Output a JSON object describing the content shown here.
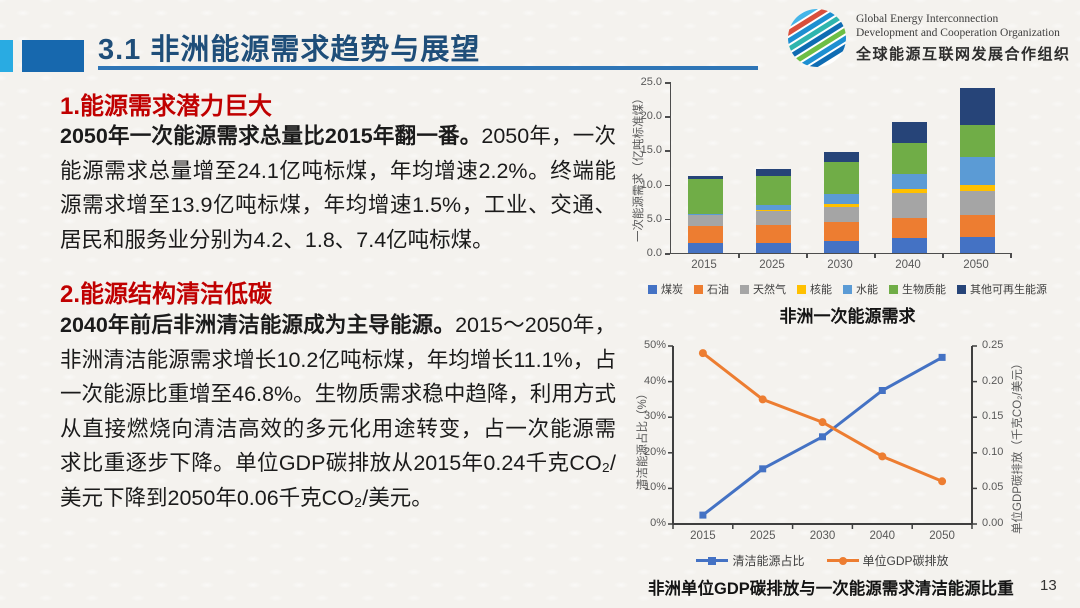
{
  "page_number": "13",
  "header": {
    "title": "3.1 非洲能源需求趋势与展望",
    "logo": {
      "en_line1": "Global Energy Interconnection",
      "en_line2": "Development and Cooperation Organization",
      "cn": "全球能源互联网发展合作组织"
    }
  },
  "sections": [
    {
      "heading": "1.能源需求潜力巨大",
      "lead": "2050年一次能源需求总量比2015年翻一番。",
      "body": "2050年，一次能源需求总量增至24.1亿吨标煤，年均增速2.2%。终端能源需求增至13.9亿吨标煤，年均增速1.5%，工业、交通、居民和服务业分别为4.2、1.8、7.4亿吨标煤。"
    },
    {
      "heading": "2.能源结构清洁低碳",
      "lead": "2040年前后非洲清洁能源成为主导能源。",
      "body": "2015～2050年，非洲清洁能源需求增长10.2亿吨标煤，年均增长11.1%，占一次能源比重增至46.8%。生物质需求稳中趋降，利用方式从直接燃烧向清洁高效的多元化用途转变，占一次能源需求比重逐步下降。单位GDP碳排放从2015年0.24千克CO₂/美元下降到2050年0.06千克CO₂/美元。"
    }
  ],
  "chart_data": [
    {
      "type": "bar",
      "stacked": true,
      "title": "非洲一次能源需求",
      "ylabel": "一次能源需求（亿吨标准煤）",
      "ylim": [
        0,
        25
      ],
      "yticks": [
        "25.0",
        "20.0",
        "15.0",
        "10.0",
        "5.0",
        "0.0"
      ],
      "grid": false,
      "legend_position": "bottom",
      "categories": [
        "2015",
        "2025",
        "2030",
        "2040",
        "2050"
      ],
      "series": [
        {
          "name": "煤炭",
          "color": "#4472C4",
          "values": [
            1.5,
            1.5,
            1.8,
            2.2,
            2.4
          ]
        },
        {
          "name": "石油",
          "color": "#ED7D31",
          "values": [
            2.5,
            2.6,
            2.7,
            2.9,
            3.1
          ]
        },
        {
          "name": "天然气",
          "color": "#A5A5A5",
          "values": [
            1.5,
            2.0,
            2.2,
            3.7,
            3.5
          ]
        },
        {
          "name": "核能",
          "color": "#FFC000",
          "values": [
            0.05,
            0.2,
            0.4,
            0.5,
            0.9
          ]
        },
        {
          "name": "水能",
          "color": "#5B9BD5",
          "values": [
            0.15,
            0.7,
            1.6,
            2.2,
            4.1
          ]
        },
        {
          "name": "生物质能",
          "color": "#70AD47",
          "values": [
            5.2,
            4.3,
            4.6,
            4.6,
            4.7
          ]
        },
        {
          "name": "其他可再生能源",
          "color": "#264478",
          "values": [
            0.3,
            1.0,
            1.5,
            3.1,
            5.4
          ]
        }
      ],
      "totals": [
        11.2,
        12.3,
        14.8,
        19.2,
        24.1
      ]
    },
    {
      "type": "line",
      "caption": "非洲单位GDP碳排放与一次能源需求清洁能源比重",
      "x": [
        "2015",
        "2025",
        "2030",
        "2040",
        "2050"
      ],
      "grid": false,
      "legend_position": "bottom",
      "left_axis": {
        "label": "清洁能源占比（%）",
        "range": [
          0,
          50
        ],
        "ticks": [
          "50%",
          "40%",
          "30%",
          "20%",
          "10%",
          "0%"
        ]
      },
      "right_axis": {
        "label": "单位GDP碳排放（千克CO₂/美元）",
        "range": [
          0,
          0.25
        ],
        "ticks": [
          "0.25",
          "0.20",
          "0.15",
          "0.10",
          "0.05",
          "0.00"
        ]
      },
      "series": [
        {
          "name": "清洁能源占比",
          "color": "#4472C4",
          "marker": "square",
          "axis": "left",
          "values": [
            2.5,
            15.5,
            24.5,
            37.5,
            46.8
          ]
        },
        {
          "name": "单位GDP碳排放",
          "color": "#ED7D31",
          "marker": "circle",
          "axis": "right",
          "values": [
            0.24,
            0.175,
            0.143,
            0.095,
            0.06
          ]
        }
      ]
    }
  ]
}
